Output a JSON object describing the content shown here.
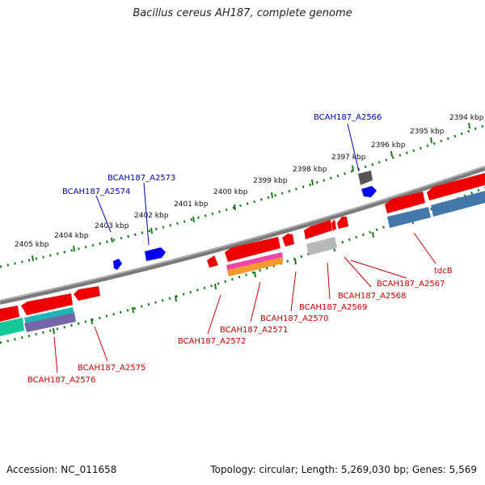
{
  "title": "Bacillus cereus AH187, complete genome",
  "footer": {
    "accession": "Accession: NC_011658",
    "summary": "Topology: circular; Length: 5,269,030 bp; Genes: 5,569"
  },
  "scale_labels": [
    "2394 kbp",
    "2395 kbp",
    "2396 kbp",
    "2397 kbp",
    "2398 kbp",
    "2399 kbp",
    "2400 kbp",
    "2401 kbp",
    "2402 kbp",
    "2403 kbp",
    "2404 kbp",
    "2405 kbp"
  ],
  "genes_forward": [
    "BCAH187_A2566",
    "BCAH187_A2573",
    "BCAH187_A2574"
  ],
  "genes_reverse": [
    "tdcB",
    "BCAH187_A2567",
    "BCAH187_A2568",
    "BCAH187_A2569",
    "BCAH187_A2570",
    "BCAH187_A2571",
    "BCAH187_A2572",
    "BCAH187_A2575",
    "BCAH187_A2576"
  ],
  "colors": {
    "backbone": "#808080",
    "cds": "#ff0000",
    "forward_gene": "#0000ff",
    "reverse_label": "#cc0000",
    "forward_label": "#0000bb",
    "ticks": "#1a7a1a"
  }
}
